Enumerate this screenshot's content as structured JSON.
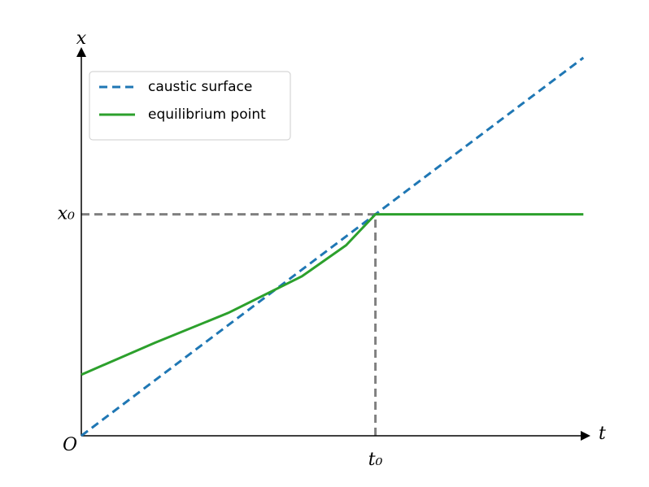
{
  "chart_data": {
    "type": "line",
    "xlabel": "t",
    "ylabel": "x",
    "origin_label": "O",
    "xlim": [
      0,
      1.72
    ],
    "ylim": [
      0,
      1.74
    ],
    "xticks": [
      {
        "value": 1,
        "label": "t₀"
      }
    ],
    "yticks": [
      {
        "value": 1,
        "label": "x₀"
      }
    ],
    "legend": "upper left",
    "series": [
      {
        "name": "caustic surface",
        "color": "#1f77b4",
        "linestyle": "dashed",
        "x": [
          0,
          1.707
        ],
        "values": [
          0,
          1.707
        ]
      },
      {
        "name": "equilibrium point",
        "color": "#2ca02c",
        "linestyle": "solid",
        "x": [
          0,
          0.25,
          0.5,
          0.75,
          0.9,
          1,
          1.707
        ],
        "values": [
          0.276,
          0.42,
          0.555,
          0.72,
          0.86,
          1,
          1
        ]
      }
    ]
  }
}
